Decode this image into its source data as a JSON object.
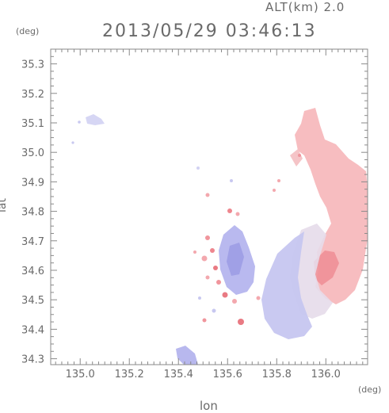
{
  "header": {
    "altitude_label": "ALT(km) 2.0",
    "datetime": "2013/05/29 03:46:13"
  },
  "chart_data": {
    "type": "heatmap",
    "title": "2013/05/29 03:46:13",
    "xlabel": "lon",
    "ylabel": "lat",
    "x_unit": "(deg)",
    "y_unit": "(deg)",
    "xlim": [
      134.88,
      136.17
    ],
    "ylim": [
      34.28,
      35.35
    ],
    "x_ticks": [
      135.0,
      135.2,
      135.4,
      135.6,
      135.8,
      136.0
    ],
    "y_ticks": [
      34.3,
      34.4,
      34.5,
      34.6,
      34.7,
      34.8,
      34.9,
      35.0,
      35.1,
      35.2,
      35.3
    ],
    "x_tick_labels": [
      "135.0",
      "135.2",
      "135.4",
      "135.6",
      "135.8",
      "136.0"
    ],
    "y_tick_labels": [
      "34.3",
      "34.4",
      "34.5",
      "34.6",
      "34.7",
      "34.8",
      "34.9",
      "35.0",
      "35.1",
      "35.2",
      "35.3"
    ],
    "grid": false,
    "colors": {
      "positive": "#f4a6ac",
      "negative": "#b9b9f0",
      "strong_positive": "#e8707a",
      "strong_negative": "#8f8fe0"
    }
  }
}
